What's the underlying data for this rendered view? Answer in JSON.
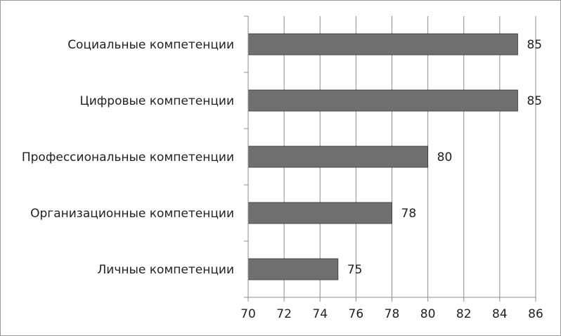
{
  "chart_data": {
    "type": "bar",
    "orientation": "horizontal",
    "categories": [
      "Социальные компетенции",
      "Цифровые компетенции",
      "Профессиональные компетенции",
      "Организационные компетенции",
      "Личные компетенции"
    ],
    "values": [
      85,
      85,
      80,
      78,
      75
    ],
    "xlim": [
      70,
      86
    ],
    "xticks": [
      "70",
      "72",
      "74",
      "76",
      "78",
      "80",
      "82",
      "84",
      "86"
    ],
    "grid": "vertical",
    "bar_color": "#707070",
    "data_labels": true
  }
}
